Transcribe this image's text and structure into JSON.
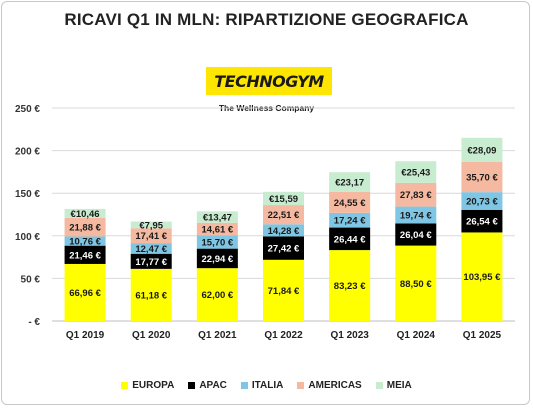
{
  "title": "RICAVI Q1 IN MLN: RIPARTIZIONE GEOGRAFICA",
  "logo": {
    "name": "TECHNOGYM",
    "tagline": "The Wellness Company"
  },
  "chart_data": {
    "type": "bar",
    "stacked": true,
    "categories": [
      "Q1 2019",
      "Q1 2020",
      "Q1 2021",
      "Q1 2022",
      "Q1 2023",
      "Q1 2024",
      "Q1 2025"
    ],
    "series": [
      {
        "name": "EUROPA",
        "color": "#ffff00",
        "values": [
          66.96,
          61.18,
          62.0,
          71.84,
          83.23,
          88.5,
          103.95
        ],
        "labels": [
          "66,96 €",
          "61,18 €",
          "62,00 €",
          "71,84 €",
          "83,23 €",
          "88,50 €",
          "103,95 €"
        ]
      },
      {
        "name": "APAC",
        "color": "#000000",
        "values": [
          21.46,
          17.77,
          22.94,
          27.42,
          26.44,
          26.04,
          26.54
        ],
        "labels": [
          "21,46 €",
          "17,77 €",
          "22,94 €",
          "27,42 €",
          "26,44 €",
          "26,04 €",
          "26,54 €"
        ]
      },
      {
        "name": "ITALIA",
        "color": "#7fc6e4",
        "values": [
          10.76,
          12.47,
          15.7,
          14.28,
          17.24,
          19.74,
          20.73
        ],
        "labels": [
          "10,76 €",
          "12,47 €",
          "15,70 €",
          "14,28 €",
          "17,24 €",
          "19,74 €",
          "20,73 €"
        ]
      },
      {
        "name": "AMERICAS",
        "color": "#f4b9a0",
        "values": [
          21.88,
          17.41,
          14.61,
          22.51,
          24.55,
          27.83,
          35.7
        ],
        "labels": [
          "21,88 €",
          "17,41 €",
          "14,61 €",
          "22,51 €",
          "24,55 €",
          "27,83 €",
          "35,70 €"
        ]
      },
      {
        "name": "MEIA",
        "color": "#c8ecd0",
        "values": [
          10.46,
          7.95,
          13.47,
          15.59,
          23.17,
          25.43,
          28.09
        ],
        "labels": [
          "€10,46",
          "€7,95",
          "€13,47",
          "€15,59",
          "€23,17",
          "€25,43",
          "€28,09"
        ]
      }
    ],
    "y_ticks": [
      {
        "value": 0,
        "label": "- €"
      },
      {
        "value": 50,
        "label": "50 €"
      },
      {
        "value": 100,
        "label": "100 €"
      },
      {
        "value": 150,
        "label": "150 €"
      },
      {
        "value": 200,
        "label": "200 €"
      },
      {
        "value": 250,
        "label": "250 €"
      }
    ],
    "ylim": [
      0,
      250
    ],
    "grid": true,
    "legend": "bottom"
  }
}
